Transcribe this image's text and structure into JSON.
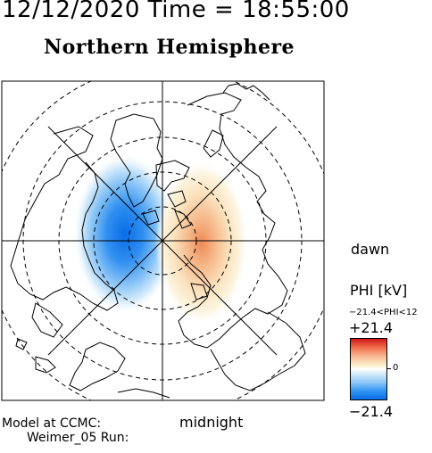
{
  "header": {
    "time_text": "12/12/2020 Time = 18:55:00",
    "hemisphere_title": "Northern Hemisphere"
  },
  "map": {
    "orientation_labels": {
      "dawn": "dawn",
      "midnight": "midnight"
    },
    "grid": {
      "latitude_circles": "dashed",
      "meridian_lines": "solid"
    },
    "potential_pattern": {
      "negative_cell": "dusk side (left)",
      "positive_cell": "dawn side (right)",
      "negative_color": "#1f7fe8",
      "positive_color": "#e8a040"
    }
  },
  "colorbar": {
    "title": "PHI [kV]",
    "range_text": "−21.4<PHI<12",
    "max_label": "+21.4",
    "zero_label": "0",
    "min_label": "−21.4",
    "max_value": 21.4,
    "min_value": -21.4,
    "top_color": "#d01818",
    "mid_color": "#ffffff",
    "bottom_color": "#0a6ce8"
  },
  "footer": {
    "model_text": "Model at CCMC:",
    "run_text": "Weimer_05 Run:"
  }
}
